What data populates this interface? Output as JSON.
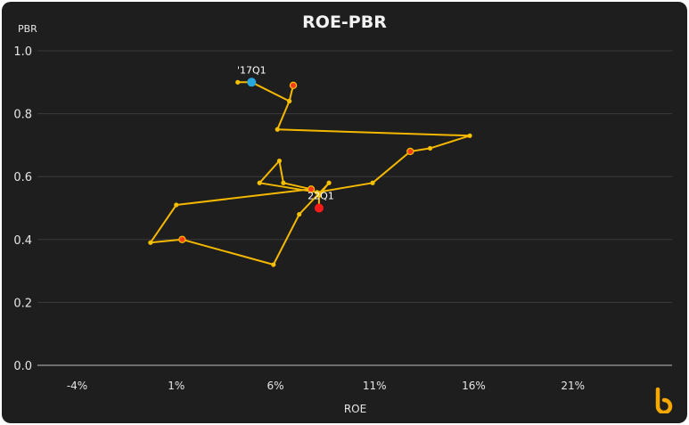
{
  "chart_data": {
    "type": "scatter",
    "title": "ROE-PBR",
    "xlabel": "ROE",
    "ylabel": "PBR",
    "xlim": [
      -6,
      26
    ],
    "ylim": [
      0,
      1.0
    ],
    "x_ticks": [
      -4,
      1,
      6,
      11,
      16,
      21
    ],
    "x_tick_labels": [
      "-4%",
      "1%",
      "6%",
      "11%",
      "16%",
      "21%"
    ],
    "y_ticks": [
      0.0,
      0.2,
      0.4,
      0.6,
      0.8,
      1.0
    ],
    "y_tick_labels": [
      "0.0",
      "0.2",
      "0.4",
      "0.6",
      "0.8",
      "1.0"
    ],
    "grid": true,
    "colors": {
      "line": "#f5b800",
      "point": "#f5c000",
      "highlight": "#ff3b1a",
      "start": "#29a8e0",
      "end": "#ff1a1a",
      "background": "#1e1e1e",
      "grid": "#3a3a3a"
    },
    "series": [
      {
        "points": [
          {
            "x": 4.1,
            "y": 0.9
          },
          {
            "x": 4.8,
            "y": 0.9
          },
          {
            "x": 6.7,
            "y": 0.84
          },
          {
            "x": 6.9,
            "y": 0.89,
            "mark": "highlight"
          },
          {
            "x": 6.7,
            "y": 0.84
          },
          {
            "x": 6.1,
            "y": 0.75
          },
          {
            "x": 15.8,
            "y": 0.73
          },
          {
            "x": 13.8,
            "y": 0.69
          },
          {
            "x": 12.8,
            "y": 0.68,
            "mark": "highlight"
          },
          {
            "x": 10.9,
            "y": 0.58
          },
          {
            "x": 8.1,
            "y": 0.55
          },
          {
            "x": 5.2,
            "y": 0.58
          },
          {
            "x": 6.2,
            "y": 0.65
          },
          {
            "x": 6.4,
            "y": 0.58
          },
          {
            "x": 7.8,
            "y": 0.56,
            "mark": "highlight"
          },
          {
            "x": 1.0,
            "y": 0.51
          },
          {
            "x": -0.3,
            "y": 0.39
          },
          {
            "x": 1.3,
            "y": 0.4,
            "mark": "highlight"
          },
          {
            "x": 5.9,
            "y": 0.32
          },
          {
            "x": 7.2,
            "y": 0.48
          },
          {
            "x": 8.7,
            "y": 0.58
          },
          {
            "x": 8.2,
            "y": 0.54
          },
          {
            "x": 8.2,
            "y": 0.5
          }
        ]
      }
    ],
    "annotations": [
      {
        "text": "'17Q1",
        "x": 4.8,
        "y": 0.9,
        "type": "start"
      },
      {
        "text": "22Q1",
        "x": 8.2,
        "y": 0.5,
        "type": "end"
      }
    ]
  }
}
